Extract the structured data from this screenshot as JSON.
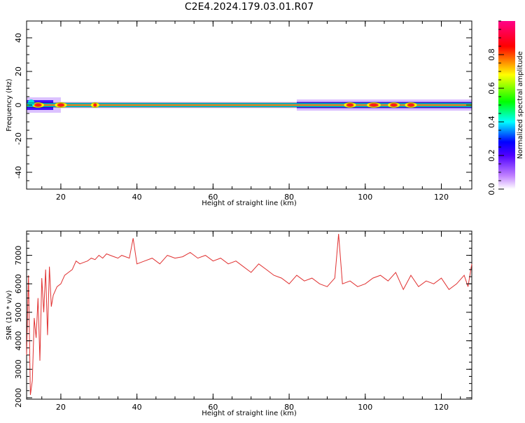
{
  "title": "C2E4.2024.179.03.01.R07",
  "top_panel": {
    "chart_data": {
      "type": "heatmap",
      "xlabel": "Height of straight line (km)",
      "ylabel": "Frequency (Hz)",
      "xlim": [
        11,
        128
      ],
      "ylim": [
        -50,
        50
      ],
      "xticks": [
        20,
        40,
        60,
        80,
        100,
        120
      ],
      "yticks": [
        -40,
        -20,
        0,
        20,
        40
      ],
      "band_center_hz": 0,
      "notes_band": "narrow high-amplitude band along 0 Hz with broadening at heights below 20 km and between 82 and 128 km"
    },
    "colorbar": {
      "label": "Normalized spectral amplitude",
      "range": [
        0,
        1
      ],
      "ticks": [
        0.0,
        0.2,
        0.4,
        0.6,
        0.8
      ],
      "colormap": [
        "#ffffff",
        "#8800ff",
        "#0000ff",
        "#00ffff",
        "#00ff00",
        "#ffff00",
        "#ff0000",
        "#ff0088"
      ]
    }
  },
  "bottom_panel": {
    "chart_data": {
      "type": "line",
      "xlabel": "Height of straight line (km)",
      "ylabel": "SNR (10 * v/v)",
      "xlim": [
        11,
        128
      ],
      "ylim": [
        1950,
        7850
      ],
      "xticks": [
        20,
        40,
        60,
        80,
        100,
        120
      ],
      "yticks": [
        2000,
        3000,
        4000,
        5000,
        6000,
        7000
      ],
      "line_color": "#e03030",
      "series": [
        {
          "x": [
            11,
            11.5,
            12,
            12.5,
            13,
            13.5,
            14,
            14.5,
            15,
            15.5,
            16,
            16.5,
            17,
            17.5,
            18,
            19,
            20,
            21,
            22,
            23,
            24,
            25,
            26,
            27,
            28,
            29,
            30,
            31,
            32,
            33,
            34,
            35,
            36,
            37,
            38,
            39,
            40,
            42,
            44,
            46,
            48,
            50,
            52,
            54,
            56,
            58,
            60,
            62,
            64,
            66,
            68,
            70,
            72,
            74,
            76,
            78,
            80,
            82,
            84,
            86,
            88,
            90,
            92,
            93,
            94,
            96,
            98,
            100,
            102,
            104,
            106,
            108,
            110,
            112,
            114,
            116,
            118,
            120,
            122,
            124,
            126,
            127,
            128
          ],
          "y": [
            3500,
            6300,
            2100,
            2600,
            4800,
            4100,
            5500,
            3300,
            6200,
            5000,
            6500,
            4200,
            6600,
            5200,
            5600,
            5900,
            6000,
            6300,
            6400,
            6500,
            6800,
            6700,
            6750,
            6800,
            6900,
            6850,
            7000,
            6900,
            7050,
            7000,
            6950,
            6900,
            7000,
            6950,
            6900,
            7600,
            6700,
            6800,
            6900,
            6700,
            7000,
            6900,
            6950,
            7100,
            6900,
            7000,
            6800,
            6900,
            6700,
            6800,
            6600,
            6400,
            6700,
            6500,
            6300,
            6200,
            6000,
            6300,
            6100,
            6200,
            6000,
            5900,
            6200,
            7750,
            6000,
            6100,
            5900,
            6000,
            6200,
            6300,
            6100,
            6400,
            5800,
            6300,
            5900,
            6100,
            6000,
            6200,
            5800,
            6000,
            6300,
            5900,
            6700
          ]
        }
      ]
    }
  }
}
